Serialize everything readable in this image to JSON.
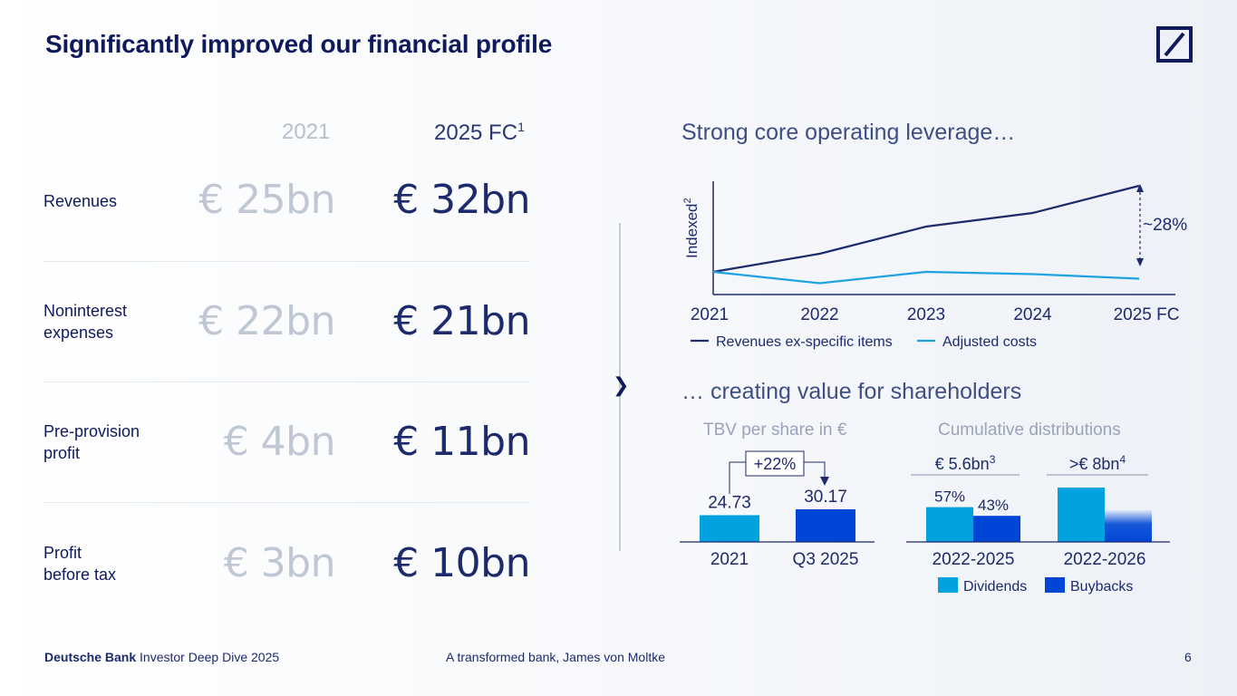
{
  "title": "Significantly improved our financial profile",
  "columns": {
    "y2021": "2021",
    "y2025": "2025 FC",
    "y2025_note": "1"
  },
  "metrics": [
    {
      "label": "Revenues",
      "v2021": "€ 25bn",
      "v2025": "€ 32bn"
    },
    {
      "label": "Noninterest\nexpenses",
      "v2021": "€ 22bn",
      "v2025": "€ 21bn"
    },
    {
      "label": "Pre-provision\nprofit",
      "v2021": "€ 4bn",
      "v2025": "€ 11bn"
    },
    {
      "label": "Profit\nbefore tax",
      "v2021": "€ 3bn",
      "v2025": "€ 10bn"
    }
  ],
  "leverage": {
    "heading": "Strong core operating leverage…",
    "ylabel": "Indexed",
    "ylabel_note": "2",
    "delta_label": "~28%",
    "chart_data": {
      "type": "line",
      "title": "Strong core operating leverage…",
      "ylabel": "Indexed",
      "categories": [
        "2021",
        "2022",
        "2023",
        "2024",
        "2025 FC"
      ],
      "ylim": [
        90,
        140
      ],
      "series": [
        {
          "name": "Revenues ex-specific items",
          "color": "#1d2a6c",
          "values": [
            100,
            108,
            120,
            126,
            138
          ]
        },
        {
          "name": "Adjusted costs",
          "color": "#1fa3e0",
          "values": [
            100,
            95,
            100,
            99,
            97
          ]
        }
      ]
    }
  },
  "shareholders": {
    "heading": "… creating value for shareholders",
    "tbv": {
      "heading": "TBV per share in €",
      "growth": "+22%",
      "chart_data": {
        "type": "bar",
        "categories": [
          "2021",
          "Q3 2025"
        ],
        "values": [
          24.73,
          30.17
        ],
        "value_labels": [
          "24.73",
          "30.17"
        ],
        "colors": [
          "#00a3e0",
          "#0046d6"
        ]
      }
    },
    "distributions": {
      "heading": "Cumulative distributions",
      "bracket_labels": [
        {
          "text": "€ 5.6bn",
          "note": "3"
        },
        {
          "text": ">€ 8bn",
          "note": "4"
        }
      ],
      "pct_labels": [
        "57%",
        "43%"
      ],
      "chart_data": {
        "type": "bar",
        "categories": [
          "2022-2025",
          "2022-2026"
        ],
        "series": [
          {
            "name": "Dividends",
            "color": "#00a3e0",
            "values": [
              3.2,
              5.0
            ]
          },
          {
            "name": "Buybacks",
            "color": "#0046d6",
            "values": [
              2.4,
              3.0
            ]
          }
        ]
      }
    }
  },
  "footer": {
    "brand": "Deutsche Bank",
    "event": "Investor Deep Dive 2025",
    "center": "A transformed bank, James von Moltke",
    "page": "6"
  }
}
